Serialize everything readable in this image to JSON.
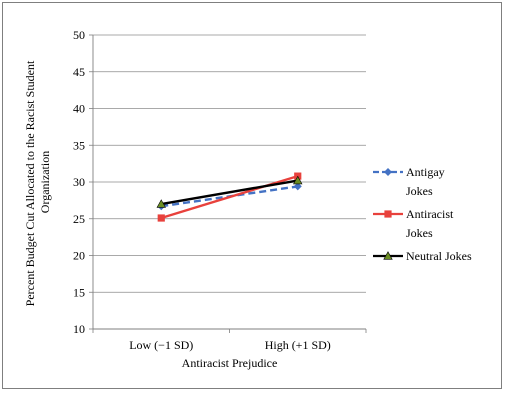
{
  "chart_data": {
    "type": "line",
    "title": "",
    "xlabel": "Antiracist Prejudice",
    "ylabel_lines": [
      "Percent Budget Cut Allocated to the Racist Student",
      "Organization"
    ],
    "ylim": [
      10,
      50
    ],
    "yticks": [
      10,
      15,
      20,
      25,
      30,
      35,
      40,
      45,
      50
    ],
    "ytick_labels": [
      "10",
      "15",
      "20",
      "25",
      "30",
      "35",
      "40",
      "45",
      "50"
    ],
    "grid": true,
    "categories": [
      "Low (−1 SD)",
      "High (+1 SD)"
    ],
    "legend_position": "right",
    "series": [
      {
        "name": "Antigay Jokes",
        "name_lines": [
          "Antigay",
          "Jokes"
        ],
        "values": [
          26.7,
          29.4
        ],
        "color": "#4472c4",
        "dash": "dashed",
        "marker": "diamond"
      },
      {
        "name": "Antiracist Jokes",
        "name_lines": [
          "Antiracist",
          "Jokes"
        ],
        "values": [
          25.1,
          30.8
        ],
        "color": "#e8413c",
        "dash": "solid",
        "marker": "square"
      },
      {
        "name": "Neutral Jokes",
        "name_lines": [
          "Neutral Jokes"
        ],
        "values": [
          27.0,
          30.2
        ],
        "color": "#000000",
        "dash": "solid",
        "marker": "triangle"
      }
    ]
  }
}
